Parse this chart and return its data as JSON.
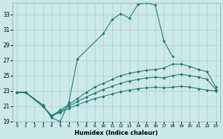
{
  "xlabel": "Humidex (Indice chaleur)",
  "bg_color": "#cce8ec",
  "grid_color": "#aacccc",
  "line_color": "#1a7a6e",
  "xlim": [
    -0.5,
    23.5
  ],
  "ylim": [
    19,
    34.5
  ],
  "yticks": [
    19,
    21,
    23,
    25,
    27,
    29,
    31,
    33
  ],
  "xticks": [
    0,
    1,
    2,
    3,
    4,
    5,
    6,
    7,
    8,
    9,
    10,
    11,
    12,
    13,
    14,
    15,
    16,
    17,
    18,
    19,
    20,
    21,
    22,
    23
  ],
  "lines": [
    {
      "x": [
        0,
        1,
        3,
        4,
        5,
        6,
        7,
        10,
        11,
        12,
        13,
        14,
        15,
        16,
        17,
        18
      ],
      "y": [
        22.8,
        22.8,
        21.2,
        19.5,
        19.0,
        21.5,
        27.2,
        30.5,
        32.3,
        33.1,
        32.5,
        34.3,
        34.5,
        34.2,
        29.5,
        27.5
      ]
    },
    {
      "x": [
        0,
        1,
        3,
        4,
        5,
        6,
        7,
        8,
        9,
        10,
        11,
        12,
        13,
        14,
        15,
        16,
        17,
        18,
        19,
        20,
        21,
        22,
        23
      ],
      "y": [
        22.8,
        22.8,
        21.0,
        19.7,
        20.5,
        21.2,
        22.0,
        22.8,
        23.5,
        24.0,
        24.5,
        25.0,
        25.3,
        25.5,
        25.7,
        25.8,
        26.0,
        26.5,
        26.5,
        26.2,
        25.8,
        25.5,
        23.5
      ]
    },
    {
      "x": [
        0,
        1,
        3,
        4,
        5,
        6,
        7,
        8,
        9,
        10,
        11,
        12,
        13,
        14,
        15,
        16,
        17,
        18,
        19,
        20,
        21,
        22,
        23
      ],
      "y": [
        22.8,
        22.8,
        21.0,
        19.8,
        20.3,
        21.0,
        21.6,
        22.2,
        22.7,
        23.2,
        23.6,
        24.0,
        24.3,
        24.5,
        24.7,
        24.8,
        24.7,
        25.0,
        25.2,
        25.0,
        24.8,
        24.5,
        23.2
      ]
    },
    {
      "x": [
        0,
        1,
        3,
        4,
        5,
        6,
        7,
        8,
        9,
        10,
        11,
        12,
        13,
        14,
        15,
        16,
        17,
        18,
        19,
        20,
        21,
        22,
        23
      ],
      "y": [
        22.8,
        22.8,
        21.0,
        19.7,
        20.2,
        20.7,
        21.2,
        21.6,
        22.0,
        22.3,
        22.6,
        22.9,
        23.1,
        23.3,
        23.4,
        23.5,
        23.4,
        23.5,
        23.6,
        23.5,
        23.3,
        23.1,
        23.0
      ]
    }
  ]
}
